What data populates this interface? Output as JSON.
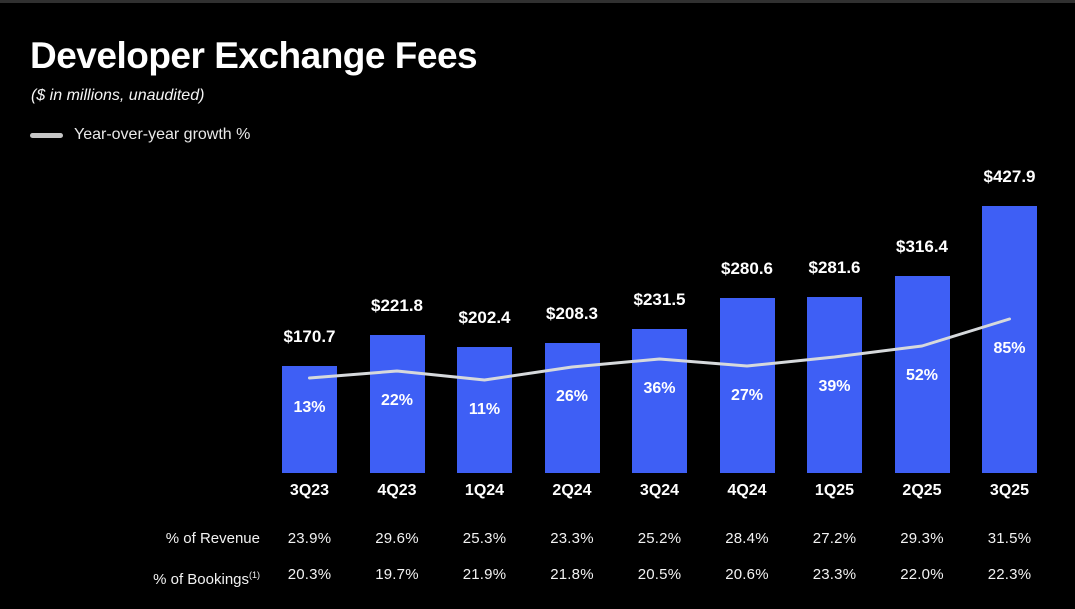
{
  "header": {
    "title": "Developer Exchange Fees",
    "subtitle": "($ in millions, unaudited)",
    "legend_label": "Year-over-year growth %"
  },
  "colors": {
    "background": "#000000",
    "top_border": "#303030",
    "bar_blue": "#3E5FF5",
    "growth_line": "#D6D9DC",
    "legend_swatch": "#C6C6C6",
    "text_primary": "#FFFFFF",
    "table_text": "#F2F2F2"
  },
  "chart_data": {
    "type": "bar",
    "title": "Developer Exchange Fees",
    "subtitle": "($ in millions, unaudited)",
    "categories": [
      "3Q23",
      "4Q23",
      "1Q24",
      "2Q24",
      "3Q24",
      "4Q24",
      "1Q25",
      "2Q25",
      "3Q25"
    ],
    "series": [
      {
        "name": "Developer Exchange Fees",
        "type": "bar",
        "unit": "$ in millions",
        "values": [
          170.7,
          221.8,
          202.4,
          208.3,
          231.5,
          280.6,
          281.6,
          316.4,
          427.9
        ],
        "label_prefix": "$"
      },
      {
        "name": "Year-over-year growth %",
        "type": "line",
        "unit": "%",
        "values": [
          13,
          22,
          11,
          26,
          36,
          27,
          39,
          52,
          85
        ],
        "label_suffix": "%"
      }
    ],
    "ylim": [
      0,
      450
    ],
    "grid": false,
    "legend_position": "top-left"
  },
  "table": {
    "rows": [
      {
        "label": "% of Revenue",
        "footnote": "",
        "values": [
          23.9,
          29.6,
          25.3,
          23.3,
          25.2,
          28.4,
          27.2,
          29.3,
          31.5
        ]
      },
      {
        "label": "% of Bookings",
        "footnote": "(1)",
        "values": [
          20.3,
          19.7,
          21.9,
          21.8,
          20.5,
          20.6,
          23.3,
          22.0,
          22.3
        ]
      }
    ]
  }
}
